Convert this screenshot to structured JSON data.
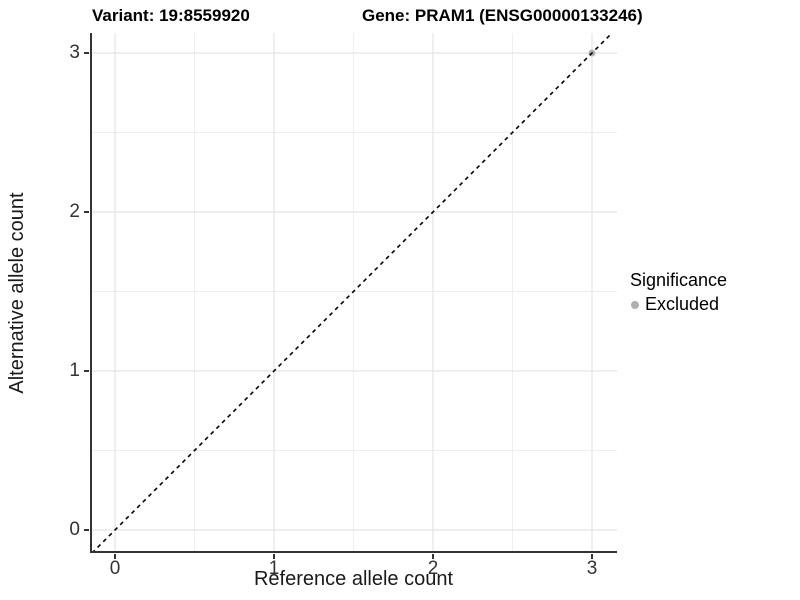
{
  "titles": {
    "variant": "Variant: 19:8559920",
    "gene": "Gene: PRAM1 (ENSG00000133246)"
  },
  "legend": {
    "title": "Significance",
    "items": [
      {
        "label": "Excluded",
        "color": "#b0b0b0"
      }
    ]
  },
  "colors": {
    "background": "#ffffff",
    "grid_major": "#e4e4e4",
    "grid_minor": "#efefef",
    "axis_line": "#333333",
    "axis_text": "#333333",
    "identity_line": "#000000",
    "point": "#b0b0b0"
  },
  "chart_data": {
    "type": "scatter",
    "title": "Variant: 19:8559920   Gene: PRAM1 (ENSG00000133246)",
    "xlabel": "Reference allele count",
    "ylabel": "Alternative allele count",
    "xlim": [
      -0.157,
      3.157
    ],
    "ylim": [
      -0.145,
      3.126
    ],
    "xticks": [
      0,
      1,
      2,
      3
    ],
    "yticks": [
      0,
      1,
      2,
      3
    ],
    "xticks_minor": [
      0.5,
      1.5,
      2.5
    ],
    "yticks_minor": [
      0.5,
      1.5,
      2.5
    ],
    "grid": true,
    "legend_position": "right",
    "series": [
      {
        "name": "Excluded",
        "color": "#b0b0b0",
        "points": [
          [
            3,
            3
          ]
        ]
      }
    ],
    "reference_line": {
      "type": "identity y=x",
      "style": "dashed",
      "color": "#000000"
    }
  }
}
